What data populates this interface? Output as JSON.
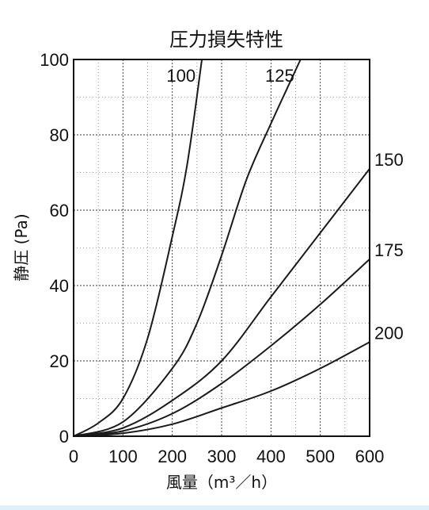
{
  "chart_data": {
    "type": "line",
    "title": "圧力損失特性",
    "xlabel": "風量（m³／h）",
    "ylabel": "静圧 (Pa)",
    "xlim": [
      0,
      600
    ],
    "ylim": [
      0,
      100
    ],
    "xticks": [
      0,
      100,
      200,
      300,
      400,
      500,
      600
    ],
    "yticks": [
      0,
      20,
      40,
      60,
      80,
      100
    ],
    "grid": true,
    "series": [
      {
        "name": "100",
        "points": [
          [
            0,
            0
          ],
          [
            50,
            3.5
          ],
          [
            100,
            10
          ],
          [
            150,
            26
          ],
          [
            200,
            53
          ],
          [
            230,
            72
          ],
          [
            260,
            100
          ]
        ]
      },
      {
        "name": "125",
        "points": [
          [
            0,
            0
          ],
          [
            100,
            3.8
          ],
          [
            200,
            18
          ],
          [
            250,
            30
          ],
          [
            300,
            48
          ],
          [
            350,
            68
          ],
          [
            400,
            83
          ],
          [
            460,
            100
          ]
        ]
      },
      {
        "name": "150",
        "points": [
          [
            0,
            0
          ],
          [
            100,
            2.2
          ],
          [
            200,
            9.5
          ],
          [
            300,
            20
          ],
          [
            400,
            37
          ],
          [
            500,
            54
          ],
          [
            600,
            71
          ]
        ]
      },
      {
        "name": "175",
        "points": [
          [
            0,
            0
          ],
          [
            100,
            1.4
          ],
          [
            200,
            6
          ],
          [
            300,
            14
          ],
          [
            400,
            24
          ],
          [
            500,
            35
          ],
          [
            600,
            47
          ]
        ]
      },
      {
        "name": "200",
        "points": [
          [
            0,
            0
          ],
          [
            100,
            0.8
          ],
          [
            200,
            3.2
          ],
          [
            300,
            7.5
          ],
          [
            400,
            12
          ],
          [
            500,
            18
          ],
          [
            600,
            25
          ]
        ]
      }
    ]
  }
}
